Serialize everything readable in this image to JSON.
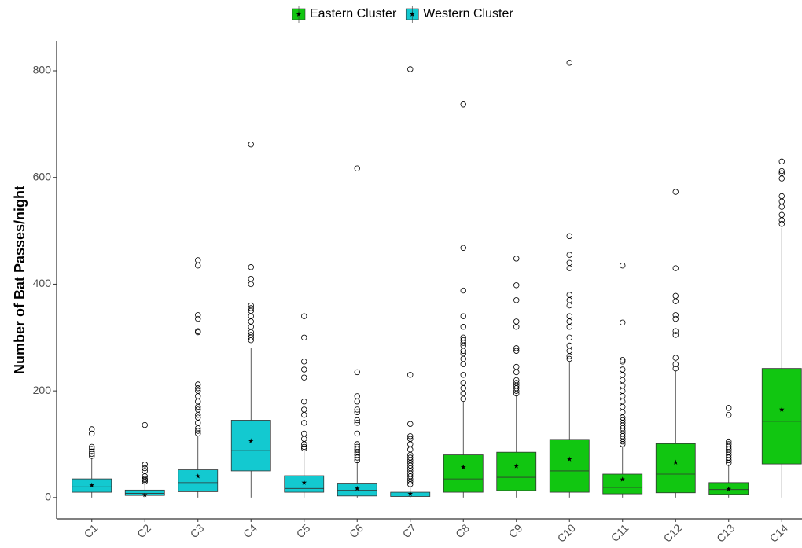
{
  "chart_data": {
    "type": "box",
    "y_label": "Number of Bat Passes/night",
    "series": [
      {
        "name": "Eastern Cluster",
        "color": "#11c611"
      },
      {
        "name": "Western Cluster",
        "color": "#13c9d0"
      }
    ],
    "categories": [
      "C1",
      "C2",
      "C3",
      "C4",
      "C5",
      "C6",
      "C7",
      "C8",
      "C9",
      "C10",
      "C11",
      "C12",
      "C13",
      "C14"
    ],
    "group": [
      1,
      1,
      1,
      1,
      1,
      1,
      1,
      0,
      0,
      0,
      0,
      0,
      0,
      0
    ],
    "ylim": [
      -40,
      856
    ],
    "yticks": [
      0,
      200,
      400,
      600,
      800
    ],
    "boxes": [
      {
        "whislo": 0,
        "q1": 10,
        "med": 20,
        "q3": 35,
        "whishi": 75,
        "mean": 23,
        "fliers": [
          78,
          82,
          86,
          91,
          95,
          120,
          128
        ]
      },
      {
        "whislo": 0,
        "q1": 4,
        "med": 8,
        "q3": 14,
        "whishi": 28,
        "mean": 5,
        "fliers": [
          30,
          33,
          35,
          40,
          50,
          55,
          62,
          136
        ]
      },
      {
        "whislo": 0,
        "q1": 11,
        "med": 28,
        "q3": 52,
        "whishi": 115,
        "mean": 40,
        "fliers": [
          120,
          125,
          130,
          140,
          150,
          155,
          165,
          170,
          180,
          190,
          200,
          205,
          212,
          310,
          312,
          335,
          342,
          435,
          445
        ]
      },
      {
        "whislo": 0,
        "q1": 50,
        "med": 88,
        "q3": 145,
        "whishi": 280,
        "mean": 106,
        "fliers": [
          295,
          300,
          305,
          310,
          320,
          330,
          340,
          350,
          355,
          360,
          400,
          410,
          432,
          662
        ]
      },
      {
        "whislo": 0,
        "q1": 10,
        "med": 17,
        "q3": 41,
        "whishi": 90,
        "mean": 28,
        "fliers": [
          92,
          95,
          100,
          110,
          120,
          140,
          155,
          165,
          180,
          225,
          240,
          255,
          300,
          340
        ]
      },
      {
        "whislo": 0,
        "q1": 3,
        "med": 14,
        "q3": 27,
        "whishi": 68,
        "mean": 17,
        "fliers": [
          70,
          75,
          80,
          85,
          90,
          95,
          100,
          120,
          140,
          145,
          160,
          165,
          180,
          190,
          235,
          617
        ]
      },
      {
        "whislo": 0,
        "q1": 2,
        "med": 5,
        "q3": 10,
        "whishi": 22,
        "mean": 7,
        "fliers": [
          25,
          30,
          35,
          40,
          45,
          50,
          55,
          60,
          65,
          70,
          75,
          80,
          90,
          100,
          110,
          115,
          138,
          230,
          803
        ]
      },
      {
        "whislo": 0,
        "q1": 10,
        "med": 35,
        "q3": 80,
        "whishi": 180,
        "mean": 57,
        "fliers": [
          185,
          195,
          205,
          215,
          230,
          250,
          260,
          270,
          275,
          285,
          290,
          295,
          300,
          320,
          340,
          388,
          468,
          737
        ]
      },
      {
        "whislo": 0,
        "q1": 13,
        "med": 38,
        "q3": 85,
        "whishi": 192,
        "mean": 59,
        "fliers": [
          195,
          200,
          205,
          210,
          215,
          220,
          235,
          245,
          275,
          280,
          320,
          330,
          370,
          398,
          448
        ]
      },
      {
        "whislo": 0,
        "q1": 10,
        "med": 50,
        "q3": 109,
        "whishi": 255,
        "mean": 72,
        "fliers": [
          260,
          265,
          275,
          285,
          300,
          320,
          330,
          340,
          360,
          370,
          380,
          430,
          440,
          455,
          490,
          815
        ]
      },
      {
        "whislo": 0,
        "q1": 7,
        "med": 19,
        "q3": 44,
        "whishi": 95,
        "mean": 34,
        "fliers": [
          100,
          105,
          110,
          115,
          120,
          125,
          130,
          135,
          140,
          145,
          150,
          160,
          170,
          180,
          190,
          200,
          210,
          220,
          230,
          240,
          255,
          258,
          328,
          435
        ]
      },
      {
        "whislo": 0,
        "q1": 9,
        "med": 44,
        "q3": 101,
        "whishi": 238,
        "mean": 66,
        "fliers": [
          242,
          250,
          262,
          305,
          312,
          335,
          342,
          368,
          378,
          430,
          573
        ]
      },
      {
        "whislo": 0,
        "q1": 6,
        "med": 15,
        "q3": 28,
        "whishi": 62,
        "mean": 16,
        "fliers": [
          65,
          70,
          75,
          80,
          85,
          90,
          95,
          100,
          105,
          155,
          168
        ]
      },
      {
        "whislo": 0,
        "q1": 63,
        "med": 143,
        "q3": 242,
        "whishi": 505,
        "mean": 165,
        "fliers": [
          513,
          520,
          530,
          545,
          555,
          565,
          598,
          608,
          612,
          630
        ]
      }
    ]
  }
}
